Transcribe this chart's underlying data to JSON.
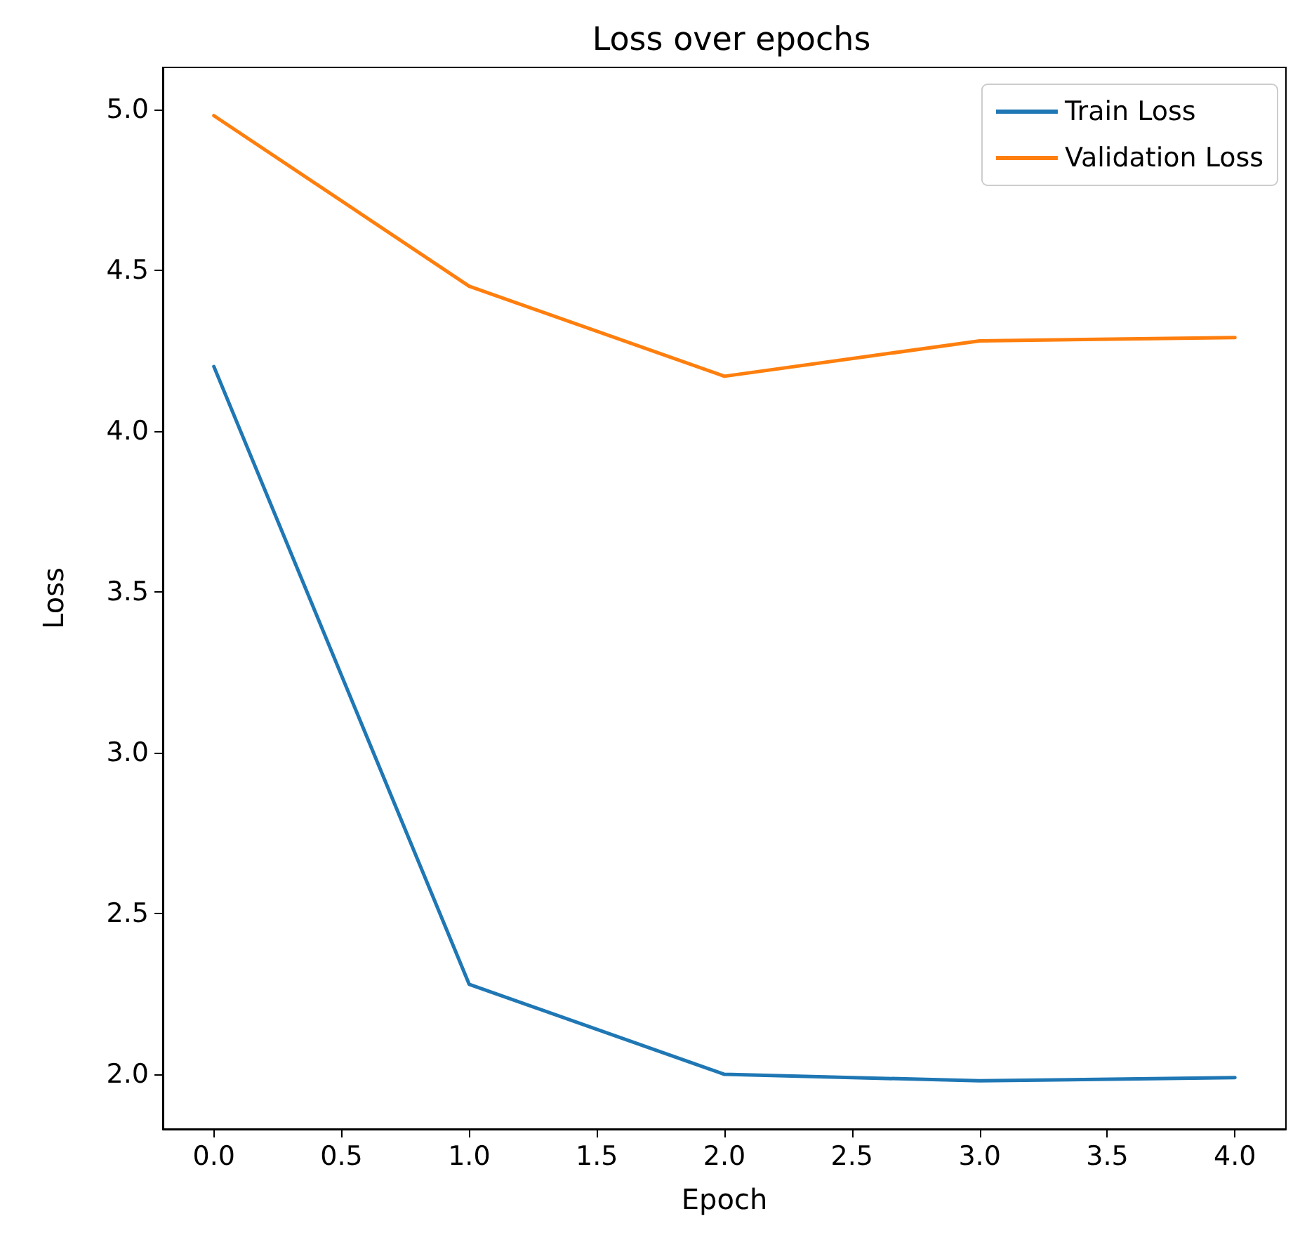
{
  "chart_data": {
    "type": "line",
    "title": "Loss over epochs",
    "xlabel": "Epoch",
    "ylabel": "Loss",
    "x": [
      0,
      1,
      2,
      3,
      4
    ],
    "series": [
      {
        "name": "Train Loss",
        "color": "#1f77b4",
        "values": [
          4.2,
          2.28,
          2.0,
          1.98,
          1.99
        ]
      },
      {
        "name": "Validation Loss",
        "color": "#ff7f0e",
        "values": [
          4.98,
          4.45,
          4.17,
          4.28,
          4.29
        ]
      }
    ],
    "xlim": [
      -0.2,
      4.2
    ],
    "ylim": [
      1.83,
      5.13
    ],
    "xticks": [
      {
        "value": 0,
        "label": "0.0"
      },
      {
        "value": 0.5,
        "label": "0.5"
      },
      {
        "value": 1,
        "label": "1.0"
      },
      {
        "value": 1.5,
        "label": "1.5"
      },
      {
        "value": 2,
        "label": "2.0"
      },
      {
        "value": 2.5,
        "label": "2.5"
      },
      {
        "value": 3,
        "label": "3.0"
      },
      {
        "value": 3.5,
        "label": "3.5"
      },
      {
        "value": 4,
        "label": "4.0"
      }
    ],
    "yticks": [
      {
        "value": 2,
        "label": "2.0"
      },
      {
        "value": 2.5,
        "label": "2.5"
      },
      {
        "value": 3,
        "label": "3.0"
      },
      {
        "value": 3.5,
        "label": "3.5"
      },
      {
        "value": 4,
        "label": "4.0"
      },
      {
        "value": 4.5,
        "label": "4.5"
      },
      {
        "value": 5,
        "label": "5.0"
      }
    ],
    "grid": false,
    "legend": "top right",
    "marker": "none",
    "line_style": "solid"
  }
}
